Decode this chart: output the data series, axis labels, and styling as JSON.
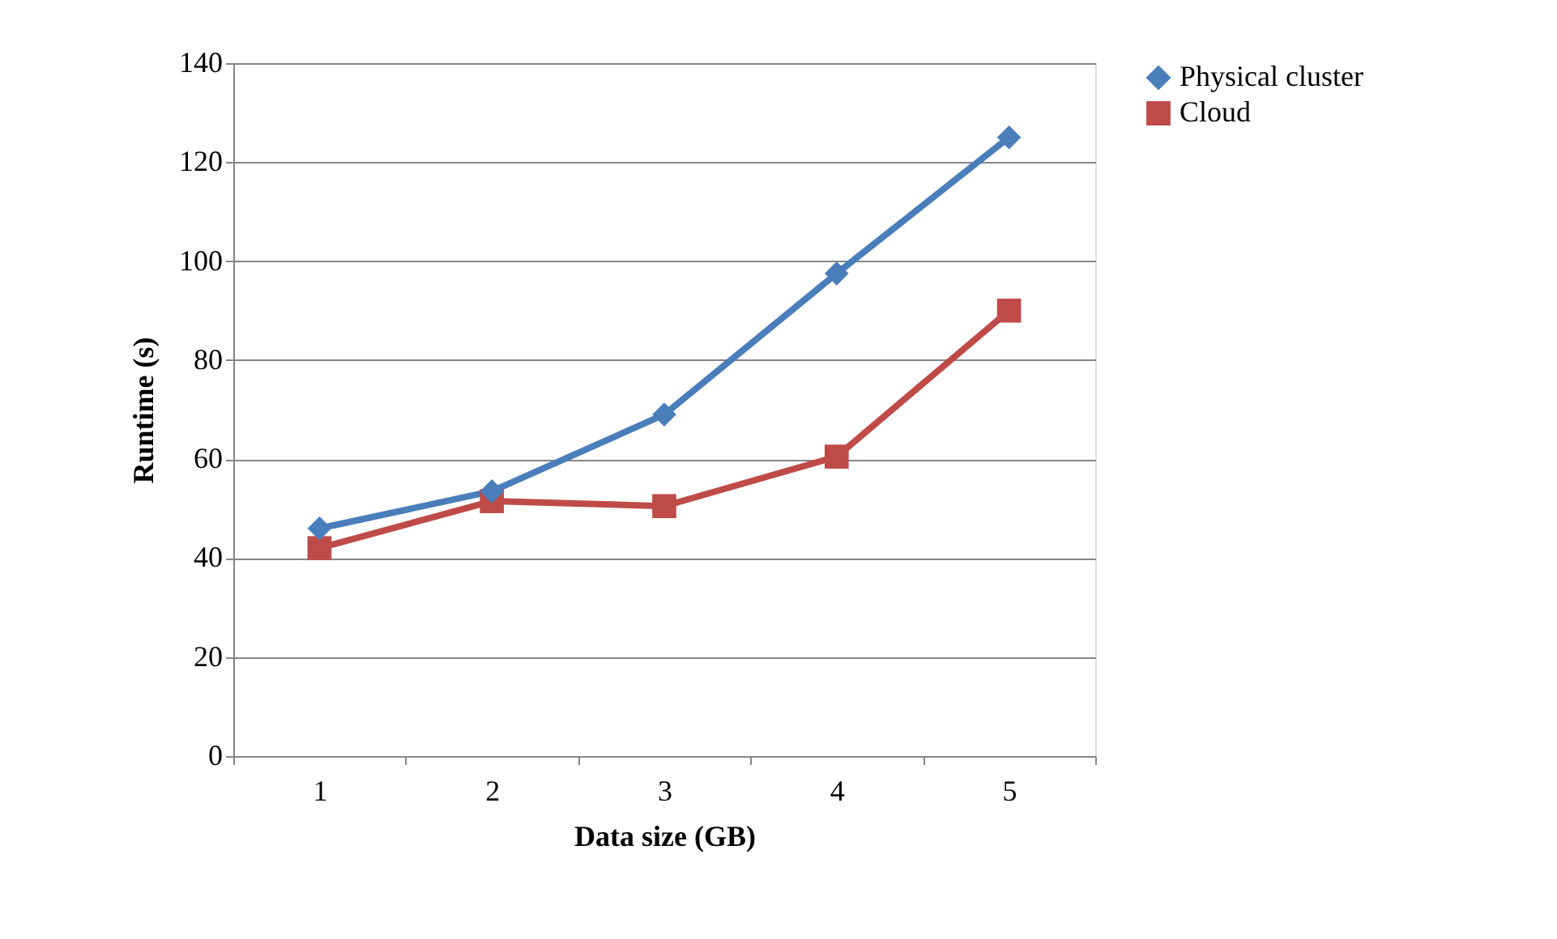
{
  "chart_data": {
    "type": "line",
    "xlabel": "Data size (GB)",
    "ylabel": "Runtime (s)",
    "categories": [
      "1",
      "2",
      "3",
      "4",
      "5"
    ],
    "series": [
      {
        "name": "Physical cluster",
        "color": "#4a7ebb",
        "marker": "diamond",
        "values": [
          46,
          53.5,
          69,
          97.5,
          125
        ]
      },
      {
        "name": "Cloud",
        "color": "#be4b48",
        "marker": "square",
        "values": [
          42,
          51.5,
          50.5,
          60.5,
          90
        ]
      }
    ],
    "ylim": [
      0,
      140
    ],
    "yticks": [
      0,
      20,
      40,
      60,
      80,
      100,
      120,
      140
    ],
    "grid": "y",
    "legend": "right",
    "line_style": "solid"
  }
}
